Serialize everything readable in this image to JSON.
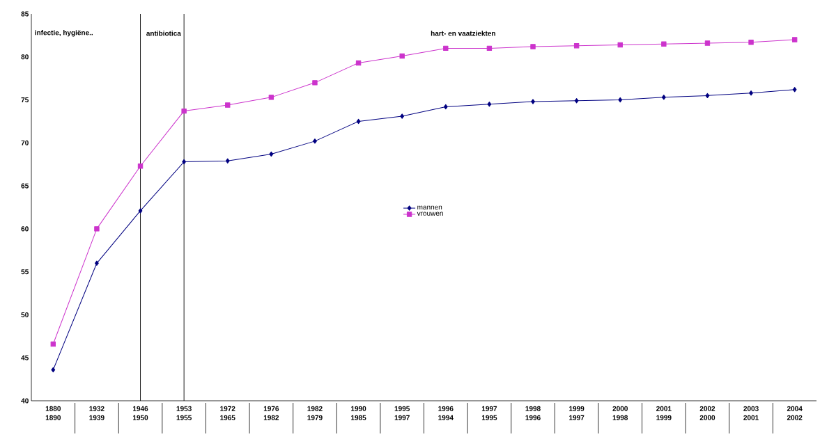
{
  "chart_data": {
    "type": "line",
    "categories": [
      "1880 1890",
      "1932 1939",
      "1946 1950",
      "1953 1955",
      "1972 1965",
      "1976 1982",
      "1982 1979",
      "1990 1985",
      "1995 1997",
      "1996 1994",
      "1997 1995",
      "1998 1996",
      "1999 1997",
      "2000 1998",
      "2001 1999",
      "2002 2000",
      "2003 2001",
      "2004 2002"
    ],
    "series": [
      {
        "name": "mannen",
        "color": "#000080",
        "marker": "diamond",
        "values": [
          43.6,
          56.0,
          62.1,
          67.8,
          67.9,
          68.7,
          70.2,
          72.5,
          73.1,
          74.2,
          74.5,
          74.8,
          74.9,
          75.0,
          75.3,
          75.5,
          75.8,
          76.2
        ]
      },
      {
        "name": "vrouwen",
        "color": "#cc33cc",
        "marker": "square",
        "values": [
          46.6,
          60.0,
          67.3,
          73.7,
          74.4,
          75.3,
          77.0,
          79.3,
          80.1,
          81.0,
          81.0,
          81.2,
          81.3,
          81.4,
          81.5,
          81.6,
          81.7,
          82.0
        ]
      }
    ],
    "ylim": [
      40,
      85
    ],
    "yticks": [
      40,
      45,
      50,
      55,
      60,
      65,
      70,
      75,
      80,
      85
    ],
    "ref_lines": [
      {
        "axis": "x",
        "value": "1946 1950"
      },
      {
        "axis": "x",
        "value": "1953 1955"
      }
    ],
    "annotations": [
      "infectie, hygiëne..",
      "antibiotica",
      "hart- en vaatziekten"
    ],
    "legend": "center",
    "grid": false
  }
}
